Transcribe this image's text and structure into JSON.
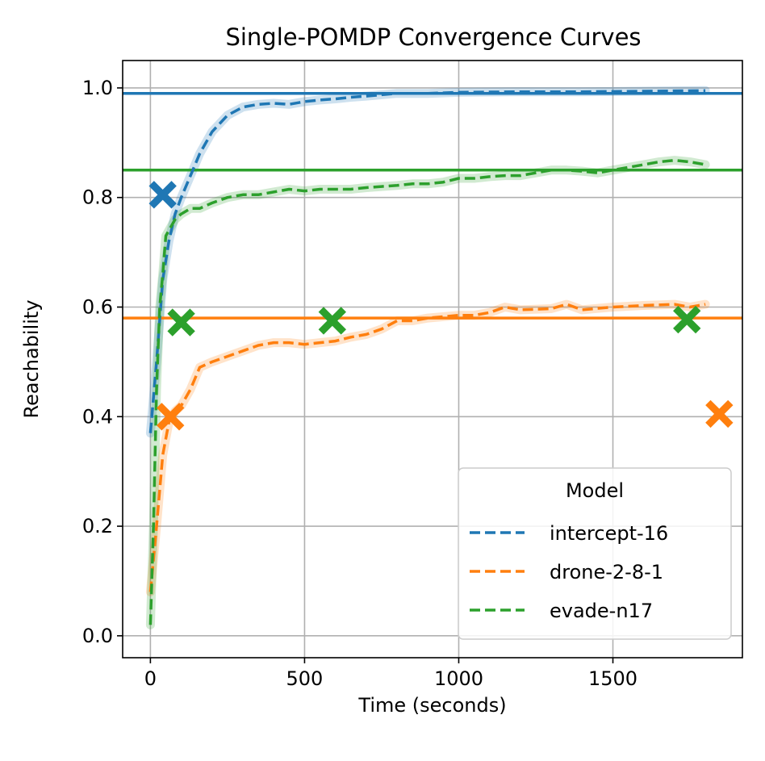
{
  "chart_data": {
    "type": "line",
    "title": "Single-POMDP Convergence Curves",
    "xlabel": "Time (seconds)",
    "ylabel": "Reachability",
    "xlim": [
      -90,
      1920
    ],
    "ylim": [
      -0.04,
      1.05
    ],
    "xticks": [
      0,
      500,
      1000,
      1500
    ],
    "xtick_labels": [
      "0",
      "500",
      "1000",
      "1500"
    ],
    "yticks": [
      0.0,
      0.2,
      0.4,
      0.6,
      0.8,
      1.0
    ],
    "ytick_labels": [
      "0.0",
      "0.2",
      "0.4",
      "0.6",
      "0.8",
      "1.0"
    ],
    "grid": true,
    "legend": {
      "title": "Model",
      "placement": "lower-right",
      "entries": [
        "intercept-16",
        "drone-2-8-1",
        "evade-n17"
      ]
    },
    "series": [
      {
        "name": "intercept-16",
        "color": "#1f77b4",
        "linestyle": "dashed",
        "x": [
          0,
          20,
          40,
          60,
          80,
          100,
          130,
          160,
          200,
          250,
          300,
          350,
          400,
          450,
          500,
          550,
          600,
          650,
          700,
          800,
          900,
          1000,
          1200,
          1400,
          1600,
          1800
        ],
        "y": [
          0.37,
          0.5,
          0.65,
          0.72,
          0.77,
          0.8,
          0.84,
          0.88,
          0.92,
          0.95,
          0.965,
          0.97,
          0.972,
          0.97,
          0.975,
          0.978,
          0.98,
          0.983,
          0.985,
          0.99,
          0.99,
          0.992,
          0.993,
          0.993,
          0.994,
          0.995
        ],
        "horizontal_line": 0.99,
        "markers": [
          {
            "x": 40,
            "y": 0.805
          }
        ]
      },
      {
        "name": "drone-2-8-1",
        "color": "#ff7f0e",
        "linestyle": "dashed",
        "x": [
          0,
          20,
          40,
          60,
          80,
          100,
          130,
          160,
          200,
          250,
          300,
          350,
          400,
          450,
          500,
          550,
          600,
          650,
          700,
          750,
          800,
          850,
          900,
          1000,
          1050,
          1100,
          1150,
          1200,
          1300,
          1350,
          1400,
          1500,
          1600,
          1700,
          1750,
          1800
        ],
        "y": [
          0.08,
          0.2,
          0.33,
          0.39,
          0.41,
          0.42,
          0.45,
          0.49,
          0.5,
          0.51,
          0.52,
          0.53,
          0.535,
          0.535,
          0.532,
          0.535,
          0.538,
          0.545,
          0.55,
          0.56,
          0.575,
          0.575,
          0.58,
          0.585,
          0.585,
          0.59,
          0.6,
          0.595,
          0.597,
          0.605,
          0.595,
          0.6,
          0.603,
          0.605,
          0.6,
          0.605
        ],
        "horizontal_line": 0.58,
        "markers": [
          {
            "x": 65,
            "y": 0.4
          },
          {
            "x": 1845,
            "y": 0.405
          }
        ]
      },
      {
        "name": "evade-n17",
        "color": "#2ca02c",
        "linestyle": "dashed",
        "x": [
          0,
          10,
          20,
          30,
          40,
          50,
          60,
          80,
          100,
          130,
          160,
          200,
          250,
          300,
          350,
          400,
          450,
          500,
          550,
          600,
          650,
          700,
          750,
          800,
          850,
          900,
          950,
          1000,
          1050,
          1100,
          1150,
          1200,
          1250,
          1300,
          1350,
          1400,
          1450,
          1500,
          1550,
          1600,
          1650,
          1700,
          1750,
          1800
        ],
        "y": [
          0.02,
          0.2,
          0.45,
          0.6,
          0.66,
          0.73,
          0.74,
          0.76,
          0.77,
          0.78,
          0.78,
          0.79,
          0.8,
          0.805,
          0.805,
          0.81,
          0.815,
          0.812,
          0.815,
          0.815,
          0.815,
          0.818,
          0.82,
          0.822,
          0.825,
          0.825,
          0.828,
          0.835,
          0.835,
          0.838,
          0.84,
          0.84,
          0.845,
          0.85,
          0.85,
          0.848,
          0.845,
          0.85,
          0.855,
          0.86,
          0.865,
          0.868,
          0.865,
          0.86
        ],
        "horizontal_line": 0.85,
        "markers": [
          {
            "x": 100,
            "y": 0.572
          },
          {
            "x": 590,
            "y": 0.575
          },
          {
            "x": 1740,
            "y": 0.577
          }
        ]
      }
    ]
  }
}
